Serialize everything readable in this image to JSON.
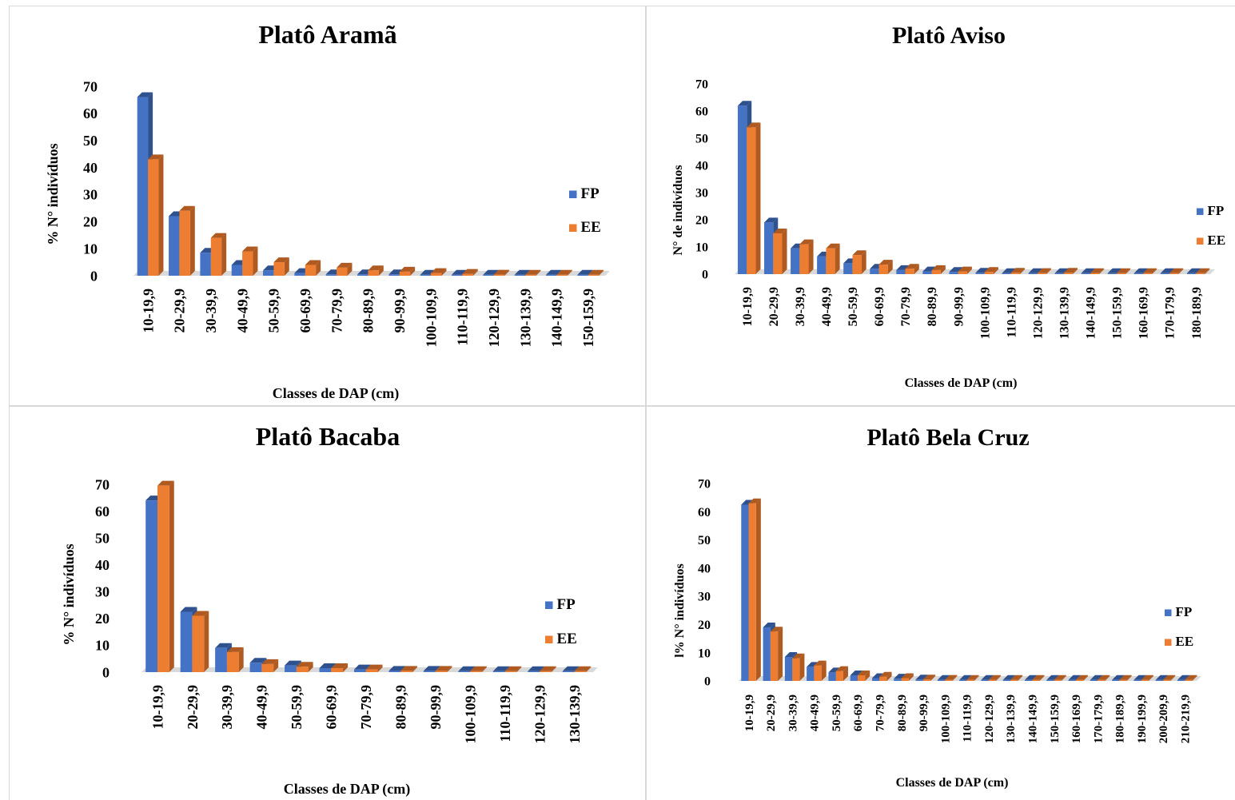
{
  "colors": {
    "fp": "#4472c4",
    "fp_dark": "#2f528f",
    "ee": "#ed7d31",
    "ee_dark": "#ae5a21"
  },
  "chart_data": [
    {
      "type": "bar",
      "title": "Platô Aramã",
      "xlabel": "Classes de DAP (cm)",
      "ylabel": "% N° indivíduos",
      "ylim": [
        0,
        70
      ],
      "yticks": [
        "0",
        "10",
        "20",
        "30",
        "40",
        "50",
        "60",
        "70"
      ],
      "legend": "right",
      "categories": [
        "10-19,9",
        "20-29,9",
        "30-39,9",
        "40-49,9",
        "50-59,9",
        "60-69,9",
        "70-79,9",
        "80-89,9",
        "90-99,9",
        "100-109,9",
        "110-119,9",
        "120-129,9",
        "130-139,9",
        "140-149,9",
        "150-159,9"
      ],
      "series": [
        {
          "name": "FP",
          "values": [
            66,
            22,
            8.5,
            4,
            2,
            1,
            0.5,
            0.5,
            0.5,
            0.3,
            0.2,
            0.1,
            0.1,
            0.1,
            0.1
          ]
        },
        {
          "name": "EE",
          "values": [
            43,
            24,
            14,
            9,
            5,
            4,
            3,
            2,
            1.5,
            1,
            0.7,
            0.4,
            0.3,
            0.2,
            0.1
          ]
        }
      ]
    },
    {
      "type": "bar",
      "title": "Platô Aviso",
      "xlabel": "Classes de DAP (cm)",
      "ylabel": "N° de indivíduos",
      "ylim": [
        0,
        70
      ],
      "yticks": [
        "0",
        "10",
        "20",
        "30",
        "40",
        "50",
        "60",
        "70"
      ],
      "legend": "right",
      "categories": [
        "10-19,9",
        "20-29,9",
        "30-39,9",
        "40-49,9",
        "50-59,9",
        "60-69,9",
        "70-79,9",
        "80-89,9",
        "90-99,9",
        "100-109,9",
        "110-119,9",
        "120-129,9",
        "130-139,9",
        "140-149,9",
        "150-159,9",
        "160-169,9",
        "170-179,9",
        "180-189,9"
      ],
      "series": [
        {
          "name": "FP",
          "values": [
            62,
            19,
            9.5,
            6.5,
            4,
            2,
            1.5,
            1,
            0.8,
            0.5,
            0.3,
            0.3,
            0.2,
            0.2,
            0.1,
            0.1,
            0.1,
            0.1
          ]
        },
        {
          "name": "EE",
          "values": [
            54,
            15,
            11,
            9.5,
            7,
            3.5,
            2,
            1.5,
            1,
            0.8,
            0.5,
            0.4,
            0.5,
            0.3,
            0.2,
            0.2,
            0.2,
            0.2
          ]
        }
      ]
    },
    {
      "type": "bar",
      "title": "Platô Bacaba",
      "xlabel": "Classes de DAP (cm)",
      "ylabel": "% N°  indivíduos",
      "ylim": [
        0,
        70
      ],
      "yticks": [
        "0",
        "10",
        "20",
        "30",
        "40",
        "50",
        "60",
        "70"
      ],
      "legend": "right",
      "categories": [
        "10-19,9",
        "20-29,9",
        "30-39,9",
        "40-49,9",
        "50-59,9",
        "60-69,9",
        "70-79,9",
        "80-89,9",
        "90-99,9",
        "100-109,9",
        "110-119,9",
        "120-129,9",
        "130-139,9"
      ],
      "series": [
        {
          "name": "FP",
          "values": [
            64,
            22.5,
            9,
            3.5,
            2.5,
            1.5,
            1,
            0.5,
            0.5,
            0.3,
            0.2,
            0.2,
            0.1
          ]
        },
        {
          "name": "EE",
          "values": [
            69.5,
            21,
            7.5,
            3,
            2,
            1.5,
            1,
            0.5,
            0.5,
            0.3,
            0.2,
            0.1,
            0.1
          ]
        }
      ]
    },
    {
      "type": "bar",
      "title": "Platô Bela Cruz",
      "xlabel": "Classes de DAP (cm)",
      "ylabel": "l% N° indivíduos",
      "ylim": [
        0,
        70
      ],
      "yticks": [
        "0",
        "10",
        "20",
        "30",
        "40",
        "50",
        "60",
        "70"
      ],
      "legend": "right",
      "categories": [
        "10-19,9",
        "20-29,9",
        "30-39,9",
        "40-49,9",
        "50-59,9",
        "60-69,9",
        "70-79,9",
        "80-89,9",
        "90-99,9",
        "100-109,9",
        "110-119,9",
        "120-129,9",
        "130-139,9",
        "140-149,9",
        "150-159,9",
        "160-169,9",
        "170-179,9",
        "180-189,9",
        "190-199,9",
        "200-209,9",
        "210-219,9"
      ],
      "series": [
        {
          "name": "FP",
          "values": [
            62.5,
            19,
            8.5,
            5,
            3,
            2,
            1,
            0.8,
            0.5,
            0.3,
            0.3,
            0.2,
            0.2,
            0.2,
            0.1,
            0.1,
            0.1,
            0.1,
            0.1,
            0.1,
            0.1
          ]
        },
        {
          "name": "EE",
          "values": [
            63,
            17.5,
            8,
            5.5,
            3.5,
            2,
            1.5,
            1,
            0.5,
            0.4,
            0.3,
            0.2,
            0.2,
            0.2,
            0.1,
            0.1,
            0.1,
            0.1,
            0.1,
            0.1,
            0.1
          ]
        }
      ]
    }
  ]
}
